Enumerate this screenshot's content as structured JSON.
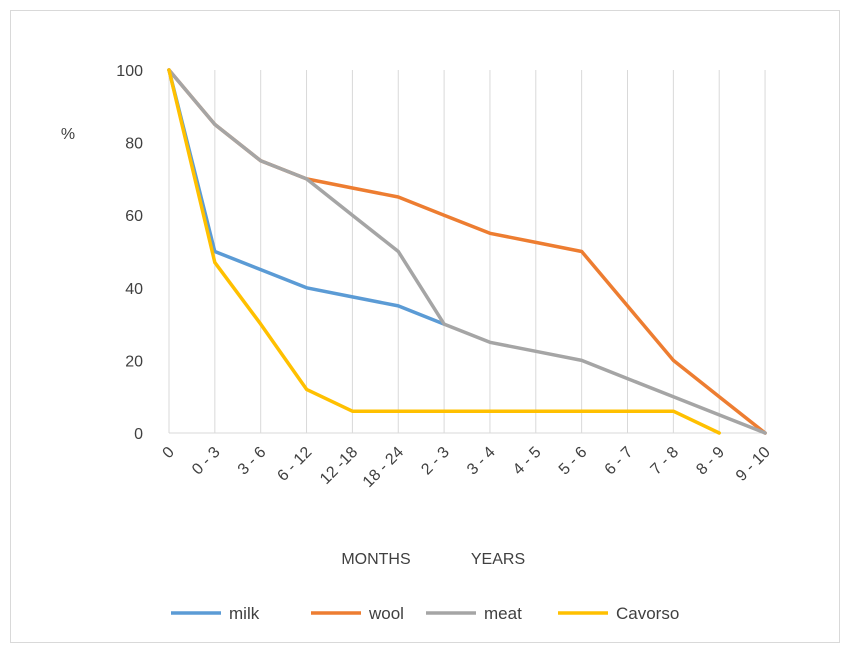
{
  "chart_data": {
    "type": "line",
    "title": "",
    "ylabel": "%",
    "xlabel_months": "MONTHS",
    "xlabel_years": "YEARS",
    "ylim": [
      0,
      100
    ],
    "yticks": [
      0,
      20,
      40,
      60,
      80,
      100
    ],
    "grid": "vertical",
    "legend_position": "bottom",
    "categories": [
      "0",
      "0 - 3",
      "3 - 6",
      "6 - 12",
      "12 -18",
      "18 - 24",
      "2 - 3",
      "3 - 4",
      "4 - 5",
      "5 - 6",
      "6 - 7",
      "7 - 8",
      "8 - 9",
      "9 - 10"
    ],
    "series": [
      {
        "name": "milk",
        "color": "#5b9bd5",
        "values": [
          100,
          50,
          45,
          40,
          37.5,
          35,
          30,
          null,
          null,
          null,
          null,
          null,
          null,
          null
        ]
      },
      {
        "name": "wool",
        "color": "#ed7d31",
        "values": [
          100,
          85,
          75,
          70,
          67.5,
          65,
          60,
          55,
          52.5,
          50,
          35,
          20,
          10,
          0
        ]
      },
      {
        "name": "meat",
        "color": "#a5a5a5",
        "values": [
          100,
          85,
          75,
          70,
          60,
          50,
          30,
          25,
          22.5,
          20,
          15,
          10,
          5,
          0
        ]
      },
      {
        "name": "Cavorso",
        "color": "#ffc000",
        "values": [
          100,
          47,
          30,
          12,
          6,
          6,
          6,
          6,
          6,
          6,
          6,
          6,
          0,
          null
        ]
      }
    ]
  }
}
